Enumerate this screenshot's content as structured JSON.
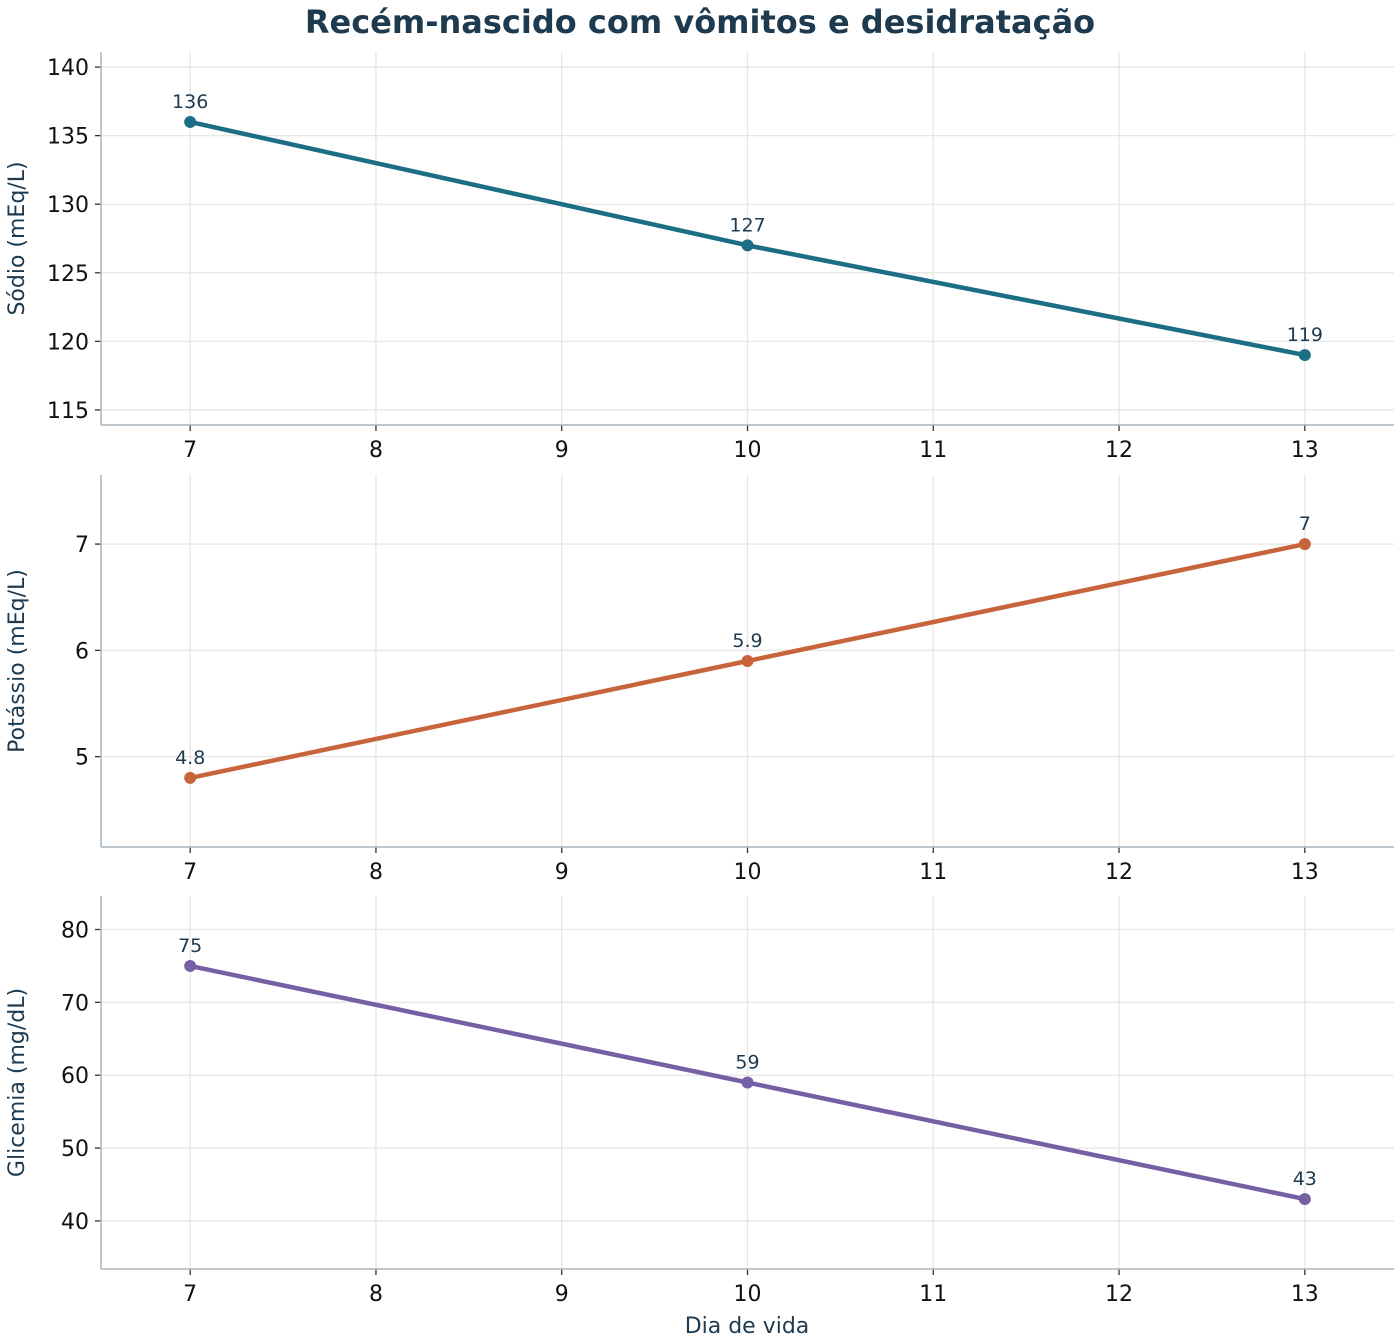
{
  "chart_data": {
    "type": "line",
    "title": "Recém-nascido com vômitos e desidratação",
    "xlabel": "Dia de vida",
    "x": [
      7,
      10,
      13
    ],
    "xlim": [
      6.52,
      13.48
    ],
    "xticks": [
      7,
      8,
      9,
      10,
      11,
      12,
      13
    ],
    "grid": true,
    "panels": [
      {
        "ylabel": "Sódio (mEq/L)",
        "color": "#1c6e85",
        "values": [
          136,
          127,
          119
        ],
        "data_labels": [
          "136",
          "127",
          "119"
        ],
        "ylim": [
          113.9,
          141.1
        ],
        "yticks": [
          115,
          120,
          125,
          130,
          135,
          140
        ]
      },
      {
        "ylabel": "Potássio (mEq/L)",
        "color": "#c8643c",
        "values": [
          4.8,
          5.9,
          7
        ],
        "data_labels": [
          "4.8",
          "5.9",
          "7"
        ],
        "ylim": [
          4.15,
          7.65
        ],
        "yticks": [
          5,
          6,
          7
        ]
      },
      {
        "ylabel": "Glicemia (mg/dL)",
        "color": "#7560a5",
        "values": [
          75,
          59,
          43
        ],
        "data_labels": [
          "75",
          "59",
          "43"
        ],
        "ylim": [
          33.4,
          84.6
        ],
        "yticks": [
          40,
          50,
          60,
          70,
          80
        ]
      }
    ]
  }
}
